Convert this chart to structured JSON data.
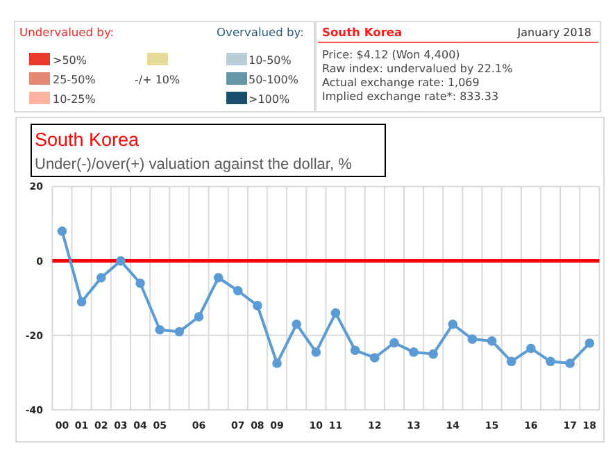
{
  "chart_data": [
    {
      "type": "other",
      "annotations": [
        "Undervalued by:",
        "Overvalued by:"
      ],
      "categories": [
        ">50%",
        "25-50%",
        "10-25%",
        "-/+ 10%",
        "10-50%",
        "50-100%",
        ">100%"
      ],
      "colors": [
        "#e8392c",
        "#e08872",
        "#fdb3a0",
        "#e6da98",
        "#b8cdd8",
        "#6497a6",
        "#1a4f6b"
      ]
    },
    {
      "type": "other",
      "title": "South Korea",
      "subtitle": "January 2018",
      "annotations": [
        "Price: $4.12 (Won 4,400)",
        "Raw index: undervalued by 22.1%",
        "Actual exchange rate: 1,069",
        "Implied exchange rate*: 833.33"
      ]
    },
    {
      "type": "line",
      "title": "South Korea",
      "subtitle": "Under(-)/over(+) valuation against the dollar, %",
      "categories": [
        "00",
        "01",
        "02",
        "03",
        "04",
        "05",
        null,
        "06",
        null,
        "07",
        "08",
        "09",
        null,
        "10",
        "11",
        null,
        "12",
        null,
        "13",
        null,
        "14",
        null,
        "15",
        null,
        "16",
        null,
        "17",
        "18"
      ],
      "values": [
        8,
        -11,
        -4.5,
        0,
        -6,
        -18.5,
        -19,
        -15,
        -4.5,
        -8,
        -12,
        -27.5,
        -17,
        -24.5,
        -14,
        -24,
        -26,
        -22,
        -24.5,
        -25,
        -17,
        -21,
        -21.5,
        -27,
        -23.5,
        -27,
        -27.5,
        -22.1
      ],
      "color": "#5b9bd5",
      "ylim": [
        -40,
        20
      ],
      "yticks": [
        -40,
        -20,
        0,
        20
      ],
      "grid": true,
      "marker": "circle",
      "ref_lines": [
        {
          "axis": "y",
          "value": 0,
          "color": "#ff0000"
        }
      ]
    }
  ]
}
